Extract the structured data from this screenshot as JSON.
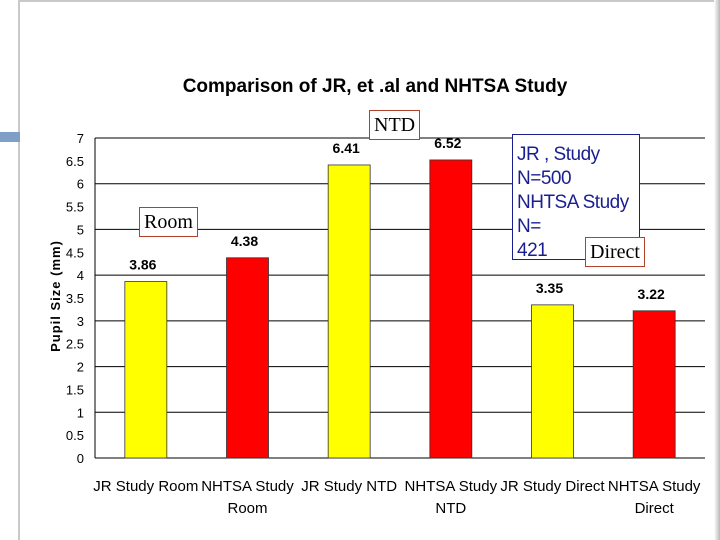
{
  "chart_data": {
    "type": "bar",
    "title": "Comparison of JR, et .al and NHTSA Study",
    "xlabel": "",
    "ylabel": "Pupil Size (mm)",
    "ylim": [
      0,
      7
    ],
    "yticks": [
      "0",
      "0.5",
      "1",
      "1.5",
      "2",
      "2.5",
      "3",
      "3.5",
      "4",
      "4.5",
      "5",
      "5.5",
      "6",
      "6.5",
      "7"
    ],
    "grid": true,
    "categories": [
      [
        "JR Study Room"
      ],
      [
        "NHTSA Study",
        "Room"
      ],
      [
        "JR Study NTD"
      ],
      [
        "NHTSA Study",
        "NTD"
      ],
      [
        "JR Study Direct"
      ],
      [
        "NHTSA Study",
        "Direct"
      ]
    ],
    "values": [
      3.86,
      4.38,
      6.41,
      6.52,
      3.35,
      3.22
    ],
    "value_labels": [
      "3.86",
      "4.38",
      "6.41",
      "6.52",
      "3.35",
      "3.22"
    ],
    "bar_colors": [
      "#ffff00",
      "#ff0000",
      "#ffff00",
      "#ff0000",
      "#ffff00",
      "#ff0000"
    ],
    "legend_text": [
      "JR , Study N=500",
      "NHTSA Study N=",
      "421"
    ],
    "legend_color": "#1a1f8f",
    "annotations": [
      "Room",
      "NTD",
      "Direct"
    ]
  },
  "colors": {
    "jr": "#ffff00",
    "nhtsa": "#ff0000",
    "grid": "#000000",
    "frame": "#c9c9c9",
    "accent_tab": "#7f9fc6"
  }
}
